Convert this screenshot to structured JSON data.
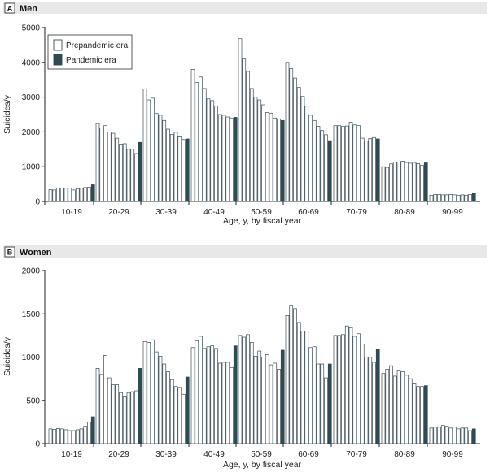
{
  "figure": {
    "legend": {
      "prepandemic_label": "Prepandemic era",
      "pandemic_label": "Pandemic era"
    },
    "colors": {
      "prepandemic_fill": "#ffffff",
      "pandemic_fill": "#2f4a52",
      "bar_stroke": "#3b4d55",
      "panel_band": "#e8e8e8",
      "axis": "#222222"
    }
  },
  "chart_data": [
    {
      "type": "bar",
      "panel_letter": "A",
      "title": "Men",
      "xlabel": "Age, y, by fiscal year",
      "ylabel": "Suicides/y",
      "ylim": [
        0,
        5000
      ],
      "yticks": [
        0,
        1000,
        2000,
        3000,
        4000,
        5000
      ],
      "ytick_labels": [
        "0",
        "1000",
        "2000",
        "3000",
        "4000",
        "5000"
      ],
      "legend_position": "top-left",
      "categories": [
        "10-19",
        "20-29",
        "30-39",
        "40-49",
        "50-59",
        "60-69",
        "70-79",
        "80-89",
        "90-99"
      ],
      "series": [
        {
          "name": "Prepandemic era",
          "values": [
            [
              340,
              330,
              390,
              390,
              380,
              390,
              330,
              370,
              380,
              400,
              410
            ],
            [
              2240,
              2110,
              2180,
              2000,
              1960,
              1820,
              1650,
              1660,
              1500,
              1510,
              1380
            ],
            [
              3240,
              2920,
              2970,
              2530,
              2480,
              2330,
              2080,
              1930,
              1990,
              1860,
              1780
            ],
            [
              3800,
              3420,
              3580,
              3250,
              2950,
              2900,
              2750,
              2500,
              2480,
              2430,
              2400
            ],
            [
              4680,
              4100,
              3740,
              3250,
              3000,
              2920,
              2780,
              2560,
              2540,
              2400,
              2370
            ],
            [
              4000,
              3820,
              3550,
              3280,
              3020,
              2740,
              2480,
              2330,
              2160,
              2040,
              1920
            ],
            [
              2180,
              2180,
              2160,
              2170,
              2280,
              2200,
              2180,
              1820,
              1740,
              1810,
              1840
            ],
            [
              1000,
              980,
              1080,
              1130,
              1130,
              1160,
              1120,
              1100,
              1120,
              1090,
              1040
            ],
            [
              180,
              200,
              200,
              190,
              190,
              200,
              190,
              180,
              190,
              180,
              200
            ]
          ]
        },
        {
          "name": "Pandemic era",
          "values": [
            480,
            1700,
            1800,
            2420,
            2330,
            1750,
            1800,
            1110,
            230
          ]
        }
      ]
    },
    {
      "type": "bar",
      "panel_letter": "B",
      "title": "Women",
      "xlabel": "Age, y, by fiscal year",
      "ylabel": "Suicides/y",
      "ylim": [
        0,
        2000
      ],
      "yticks": [
        0,
        500,
        1000,
        1500,
        2000
      ],
      "ytick_labels": [
        "0",
        "500",
        "1000",
        "1500",
        "2000"
      ],
      "categories": [
        "10-19",
        "20-29",
        "30-39",
        "40-49",
        "50-59",
        "60-69",
        "70-79",
        "80-89",
        "90-99"
      ],
      "series": [
        {
          "name": "Prepandemic era",
          "values": [
            [
              170,
              165,
              175,
              170,
              160,
              150,
              150,
              160,
              170,
              200,
              250
            ],
            [
              870,
              800,
              1020,
              760,
              680,
              680,
              590,
              540,
              590,
              600,
              610
            ],
            [
              1180,
              1170,
              1200,
              1060,
              1010,
              920,
              830,
              740,
              660,
              650,
              570
            ],
            [
              1110,
              1190,
              1240,
              1100,
              1120,
              1130,
              1100,
              930,
              940,
              940,
              880
            ],
            [
              1250,
              1230,
              1260,
              1170,
              1010,
              1070,
              1000,
              1030,
              910,
              930,
              860
            ],
            [
              1480,
              1590,
              1560,
              1400,
              1300,
              1300,
              1110,
              1120,
              920,
              920,
              760
            ],
            [
              1250,
              1250,
              1260,
              1360,
              1340,
              1240,
              1270,
              1150,
              1000,
              1000,
              940
            ],
            [
              810,
              860,
              900,
              780,
              840,
              830,
              790,
              750,
              690,
              660,
              660
            ],
            [
              180,
              190,
              190,
              210,
              200,
              180,
              190,
              170,
              180,
              180,
              150
            ]
          ]
        },
        {
          "name": "Pandemic era",
          "values": [
            310,
            870,
            770,
            1130,
            1080,
            920,
            1090,
            670,
            170
          ]
        }
      ]
    }
  ]
}
